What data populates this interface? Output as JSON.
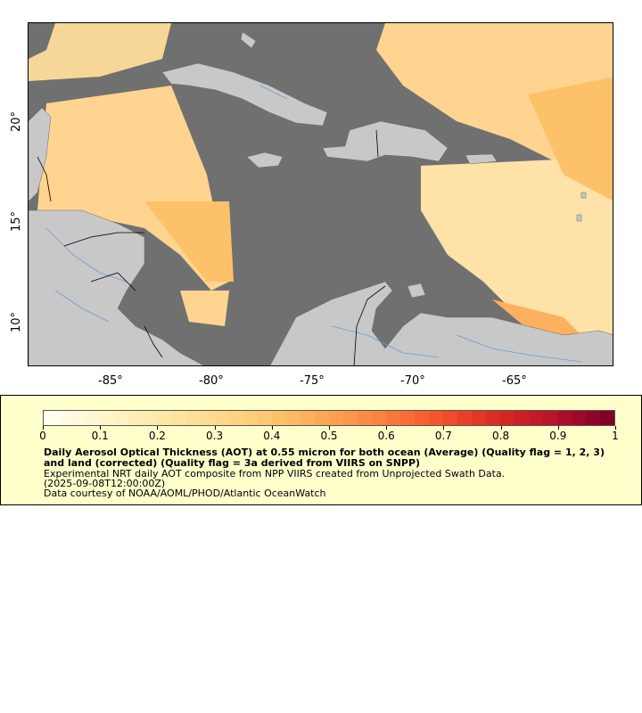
{
  "map": {
    "x_tick_labels": [
      "-85°",
      "-80°",
      "-75°",
      "-70°",
      "-65°"
    ],
    "y_tick_labels": [
      "20°",
      "15°",
      "10°"
    ],
    "colors": {
      "ocean": "#707070",
      "land": "#c8c8c8",
      "rivers": "#6b9bd1",
      "borders": "#000000"
    }
  },
  "legend": {
    "scale_ticks": [
      "0",
      "0.1",
      "0.2",
      "0.3",
      "0.4",
      "0.5",
      "0.6",
      "0.7",
      "0.8",
      "0.9",
      "1"
    ],
    "title": "Daily Aerosol Optical Thickness (AOT) at 0.55 micron for both ocean (Average) (Quality flag = 1, 2, 3) and land (corrected) (Quality flag = 3a derived from VIIRS on SNPP)",
    "description": "Experimental NRT daily AOT composite from NPP VIIRS created from Unprojected Swath Data.",
    "timestamp": "(2025-09-08T12:00:00Z)",
    "credit": "Data courtesy of NOAA/AOML/PHOD/Atlantic OceanWatch",
    "color_stops": [
      "#fffff0",
      "#fff5c8",
      "#fee9a8",
      "#fed88a",
      "#fdc56c",
      "#fda452",
      "#fc7e3e",
      "#f4522c",
      "#db2a22",
      "#b81428",
      "#800026"
    ]
  }
}
